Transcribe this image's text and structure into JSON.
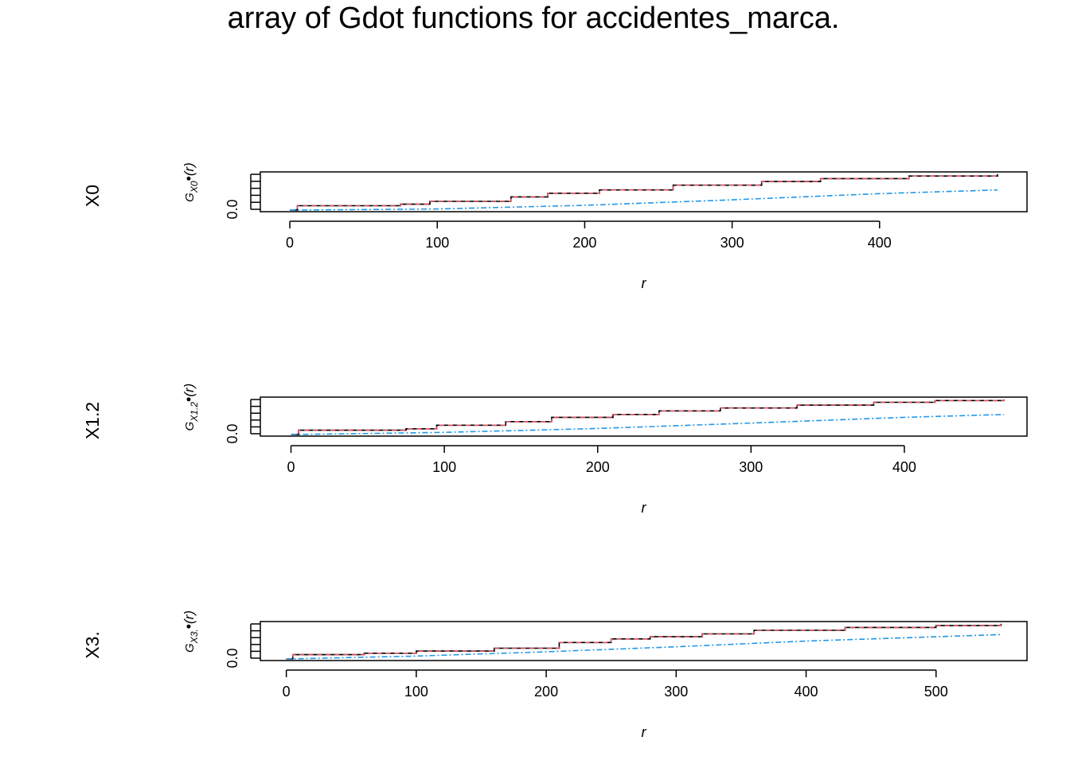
{
  "title": "array of Gdot functions for accidentes_marca.",
  "colors": {
    "obs": "#000000",
    "theo_red": "#df536b",
    "theo_green": "#61d04f",
    "theo_blue": "#2297e6"
  },
  "chart_data": [
    {
      "type": "line",
      "row_label": "X0",
      "ylabel": {
        "base": "G",
        "sub": "X0",
        "sup": "•",
        "tail": "(r)"
      },
      "xlabel": "r",
      "xlim": [
        -20,
        500
      ],
      "ylim": [
        0,
        1
      ],
      "xticks": [
        0,
        100,
        200,
        300,
        400
      ],
      "ytick_label": "0.0",
      "series": [
        {
          "role": "obs",
          "x": [
            0,
            5,
            75,
            95,
            150,
            175,
            210,
            260,
            320,
            360,
            420,
            480
          ],
          "y": [
            0.0,
            0.12,
            0.16,
            0.24,
            0.36,
            0.46,
            0.55,
            0.68,
            0.78,
            0.86,
            0.93,
            0.98
          ]
        },
        {
          "role": "theo_blue",
          "x": [
            0,
            100,
            200,
            300,
            400,
            480
          ],
          "y": [
            0.0,
            0.03,
            0.13,
            0.28,
            0.45,
            0.55
          ]
        }
      ]
    },
    {
      "type": "line",
      "row_label": "X1.2",
      "ylabel": {
        "base": "G",
        "sub": "X1.2",
        "sup": "•",
        "tail": "(r)"
      },
      "xlabel": "r",
      "xlim": [
        -20,
        480
      ],
      "ylim": [
        0,
        1
      ],
      "xticks": [
        0,
        100,
        200,
        300,
        400
      ],
      "ytick_label": "0.0",
      "series": [
        {
          "role": "obs",
          "x": [
            0,
            5,
            75,
            95,
            140,
            170,
            210,
            240,
            280,
            330,
            380,
            420,
            465
          ],
          "y": [
            0.0,
            0.12,
            0.16,
            0.26,
            0.36,
            0.48,
            0.56,
            0.66,
            0.74,
            0.82,
            0.9,
            0.95,
            0.98
          ]
        },
        {
          "role": "theo_blue",
          "x": [
            0,
            100,
            200,
            300,
            400,
            465
          ],
          "y": [
            0.0,
            0.06,
            0.17,
            0.32,
            0.48,
            0.56
          ]
        }
      ]
    },
    {
      "type": "line",
      "row_label": "X3.",
      "ylabel": {
        "base": "G",
        "sub": "X3.",
        "sup": "•",
        "tail": "(r)"
      },
      "xlabel": "r",
      "xlim": [
        -20,
        570
      ],
      "ylim": [
        0,
        1
      ],
      "xticks": [
        0,
        100,
        200,
        300,
        400,
        500
      ],
      "ytick_label": "0.0",
      "series": [
        {
          "role": "obs",
          "x": [
            0,
            5,
            60,
            100,
            160,
            210,
            250,
            280,
            320,
            360,
            430,
            500,
            550
          ],
          "y": [
            0.0,
            0.12,
            0.16,
            0.22,
            0.3,
            0.46,
            0.56,
            0.62,
            0.7,
            0.8,
            0.88,
            0.93,
            0.98
          ]
        },
        {
          "role": "theo_blue",
          "x": [
            0,
            100,
            200,
            300,
            400,
            500,
            550
          ],
          "y": [
            0.0,
            0.08,
            0.2,
            0.34,
            0.5,
            0.62,
            0.68
          ]
        }
      ]
    }
  ]
}
